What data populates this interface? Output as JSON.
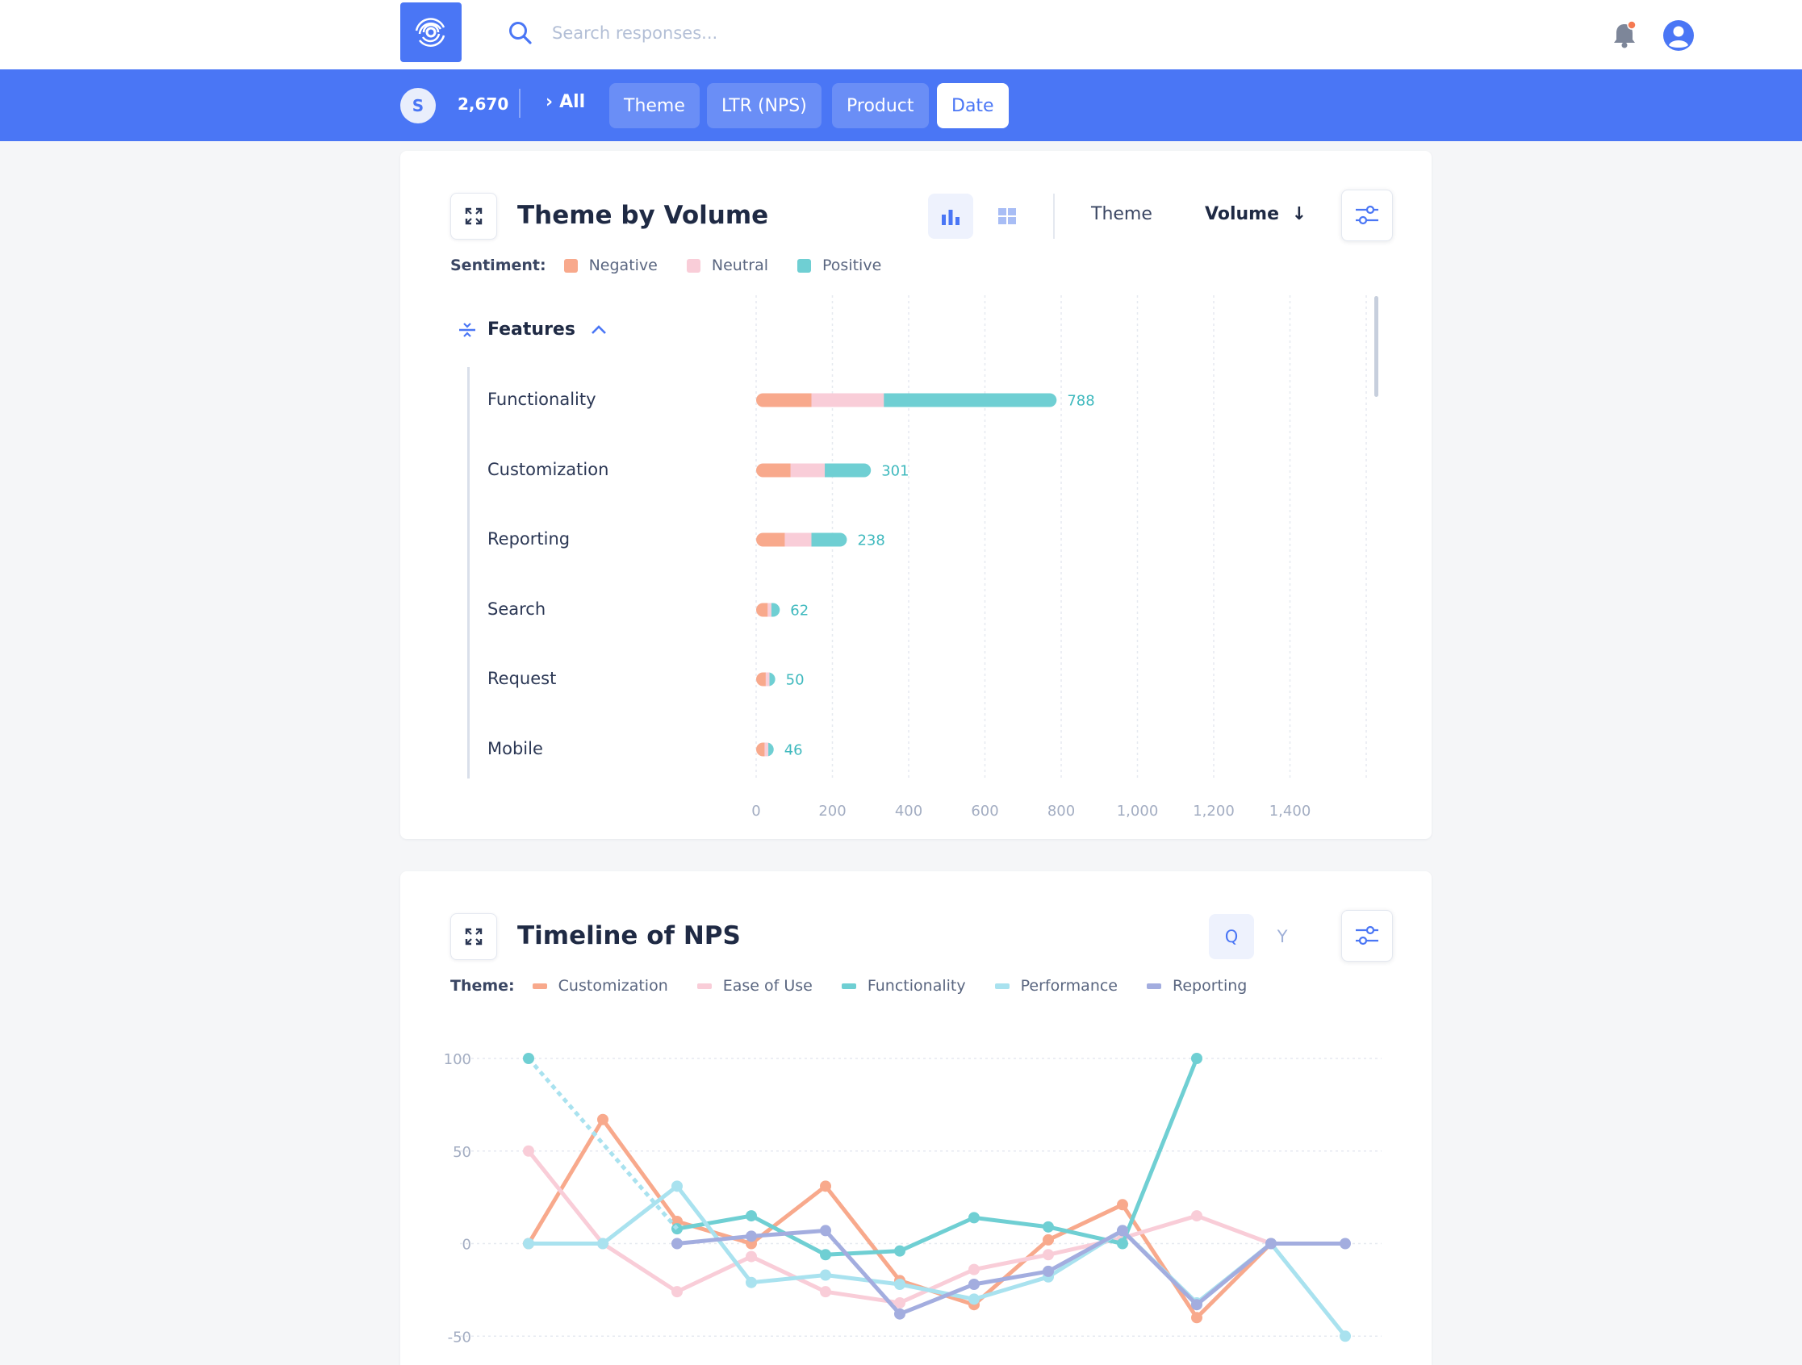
{
  "header": {
    "search_placeholder": "Search responses...",
    "logo": "logo-rings-icon",
    "accent": "#4a76f5"
  },
  "filters": {
    "avatar": "S",
    "count": "2,670",
    "crumb": "All",
    "chips": [
      "Theme",
      "LTR (NPS)",
      "Product",
      "Date"
    ],
    "active_chip": "Date"
  },
  "volume_card": {
    "title": "Theme by Volume",
    "sort_theme": "Theme",
    "sort_volume": "Volume",
    "group": "Features",
    "legend_title": "Sentiment:",
    "legend": [
      {
        "name": "Negative",
        "color": "#f8a98c"
      },
      {
        "name": "Neutral",
        "color": "#f9cdd8"
      },
      {
        "name": "Positive",
        "color": "#6fcfd3"
      }
    ]
  },
  "nps_card": {
    "title": "Timeline of NPS",
    "period_q": "Q",
    "period_y": "Y",
    "legend_title": "Theme:",
    "legend": [
      {
        "name": "Customization",
        "color": "#f8a98c"
      },
      {
        "name": "Ease of Use",
        "color": "#f9cdd8"
      },
      {
        "name": "Functionality",
        "color": "#6fcfd3"
      },
      {
        "name": "Performance",
        "color": "#a9e2ef"
      },
      {
        "name": "Reporting",
        "color": "#a3addf"
      }
    ]
  },
  "chart_data": [
    {
      "type": "bar",
      "orientation": "horizontal",
      "stacked": true,
      "categories": [
        "Functionality",
        "Customization",
        "Reporting",
        "Search",
        "Request",
        "Mobile"
      ],
      "totals": [
        788,
        301,
        238,
        62,
        50,
        46
      ],
      "series": [
        {
          "name": "Negative",
          "values": [
            145,
            90,
            75,
            30,
            25,
            22
          ]
        },
        {
          "name": "Neutral",
          "values": [
            190,
            90,
            70,
            10,
            10,
            10
          ]
        },
        {
          "name": "Positive",
          "values": [
            453,
            121,
            93,
            22,
            15,
            14
          ]
        }
      ],
      "x_ticks": [
        "0",
        "200",
        "400",
        "600",
        "800",
        "1,000",
        "1,200",
        "1,400"
      ],
      "xlim": [
        0,
        1600
      ],
      "grid": "vertical"
    },
    {
      "type": "line",
      "points": 12,
      "y_ticks": [
        "100",
        "50",
        "0",
        "-50"
      ],
      "ylim": [
        -50,
        100
      ],
      "grid": "horizontal",
      "series": [
        {
          "name": "Customization",
          "values": [
            0,
            67,
            12,
            0,
            31,
            -20,
            -33,
            2,
            21,
            -40,
            0,
            null
          ]
        },
        {
          "name": "Ease of Use",
          "values": [
            50,
            0,
            -26,
            -7,
            -26,
            -32,
            -14,
            -6,
            3,
            15,
            0,
            null
          ]
        },
        {
          "name": "Functionality",
          "values": [
            null,
            null,
            8,
            15,
            -6,
            -4,
            14,
            9,
            0,
            100,
            null,
            null
          ]
        },
        {
          "name": "Performance",
          "values": [
            0,
            0,
            31,
            -21,
            -17,
            -22,
            -30,
            -18,
            7,
            -32,
            0,
            -50
          ]
        },
        {
          "name": "Reporting",
          "values": [
            null,
            null,
            0,
            4,
            7,
            -38,
            -22,
            -15,
            7,
            -33,
            0,
            0
          ]
        }
      ]
    }
  ]
}
